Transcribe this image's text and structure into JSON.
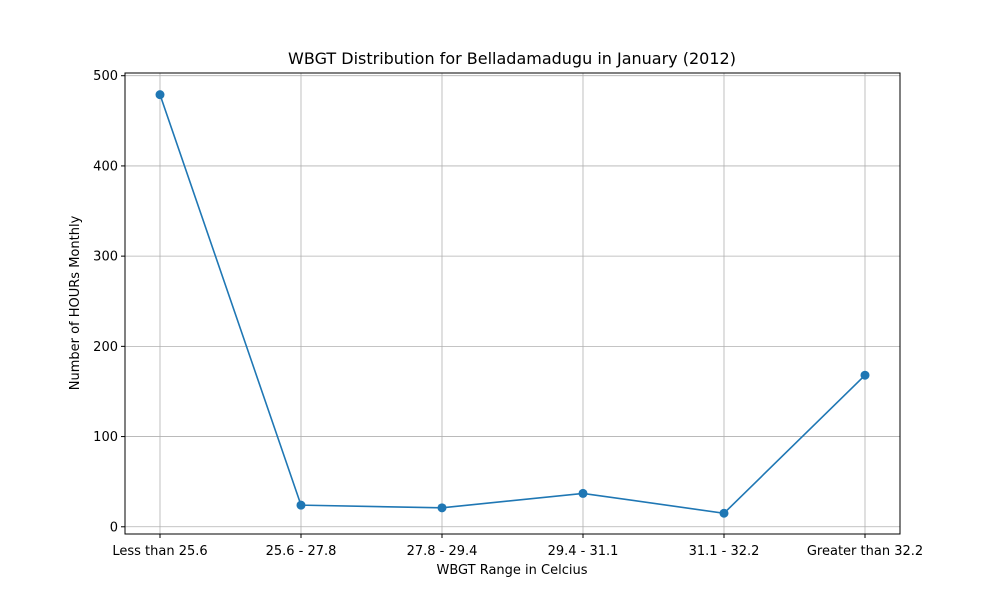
{
  "chart_data": {
    "type": "line",
    "title": "WBGT Distribution for Belladamadugu in January (2012)",
    "xlabel": "WBGT Range in Celcius",
    "ylabel": "Number of HOURs Monthly",
    "categories": [
      "Less than 25.6",
      "25.6 - 27.8",
      "27.8 - 29.4",
      "29.4 - 31.1",
      "31.1 - 32.2",
      "Greater than 32.2"
    ],
    "values": [
      479,
      24,
      21,
      37,
      15,
      168
    ],
    "ylim": [
      -8,
      503
    ],
    "yticks": [
      0,
      100,
      200,
      300,
      400,
      500
    ],
    "grid": true,
    "marker": "circle",
    "color": "#1f77b4"
  }
}
